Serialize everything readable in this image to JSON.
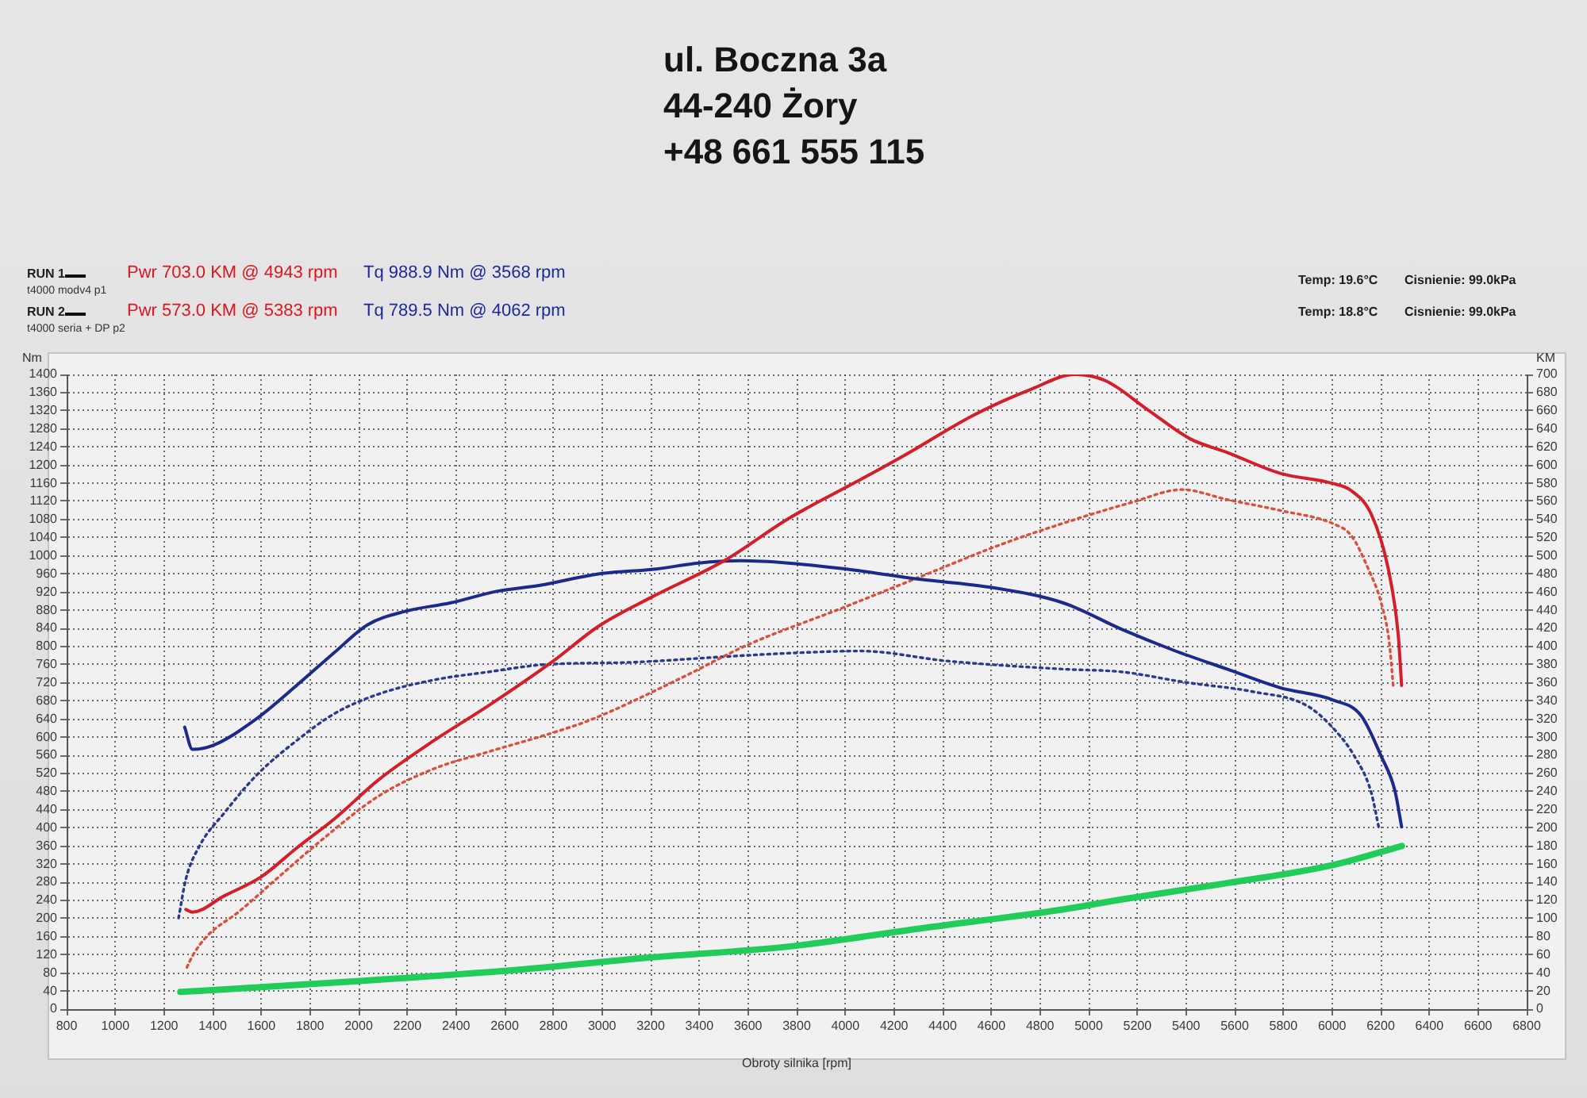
{
  "chart_data": {
    "type": "line",
    "annotations": [
      "ul. Boczna 3a",
      "44-240 Żory",
      "+48 661 555 115",
      "RUN 1",
      "Pwr 703.0 KM @ 4943 rpm",
      "Tq 988.9 Nm @ 3568 rpm",
      "t4000 modv4 p1",
      "RUN 2",
      "Pwr 573.0 KM @ 5383 rpm",
      "Tq 789.5 Nm @ 4062 rpm",
      "t4000 seria + DP p2",
      "Temp: 19.6°C",
      "Cisnienie: 99.0kPa",
      "Temp: 18.8°C",
      "Cisnienie: 99.0kPa"
    ],
    "xlabel": "Obroty silnika [rpm]",
    "ylabel": "Nm",
    "y2label": "KM",
    "xlim": [
      800,
      6800
    ],
    "xticks": [
      800,
      1000,
      1200,
      1400,
      1600,
      1800,
      2000,
      2200,
      2400,
      2600,
      2800,
      3000,
      3200,
      3400,
      3600,
      3800,
      4000,
      4200,
      4400,
      4600,
      4800,
      5000,
      5200,
      5400,
      5600,
      5800,
      6000,
      6200,
      6400,
      6600,
      6800
    ],
    "ylim": [
      0,
      1400
    ],
    "yticks": [
      0,
      40,
      80,
      120,
      160,
      200,
      240,
      280,
      320,
      360,
      400,
      440,
      480,
      520,
      560,
      600,
      640,
      680,
      720,
      760,
      800,
      840,
      880,
      920,
      960,
      1000,
      1040,
      1080,
      1120,
      1160,
      1200,
      1240,
      1280,
      1320,
      1360,
      1400
    ],
    "y2lim": [
      0,
      700
    ],
    "y2ticks": [
      0,
      20,
      40,
      60,
      80,
      100,
      120,
      140,
      160,
      180,
      200,
      220,
      240,
      260,
      280,
      300,
      320,
      340,
      360,
      380,
      400,
      420,
      440,
      460,
      480,
      500,
      520,
      540,
      560,
      580,
      600,
      620,
      640,
      660,
      680,
      700
    ],
    "grid": true,
    "series": [
      {
        "color": "#d41e2a",
        "axis": "y2",
        "line_style": "solid",
        "x": [
          1290,
          1317,
          1448,
          1600,
          1742,
          1901,
          2082,
          2308,
          2535,
          2800,
          2984,
          3201,
          3505,
          3766,
          4048,
          4244,
          4526,
          4766,
          4943,
          5070,
          5243,
          5417,
          5569,
          5787,
          6000,
          6078,
          6161,
          6230,
          6272,
          6286
        ],
        "values": [
          110,
          107,
          125,
          146,
          177,
          210,
          253,
          296,
          335,
          384,
          422,
          454,
          495,
          541,
          582,
          611,
          655,
          684,
          700,
          693,
          661,
          629,
          614,
          591,
          580,
          572,
          546,
          487,
          413,
          357
        ]
      },
      {
        "color": "#1c2a8a",
        "axis": "y",
        "line_style": "solid",
        "x": [
          1285,
          1317,
          1403,
          1584,
          1743,
          1901,
          2037,
          2195,
          2376,
          2571,
          2745,
          2984,
          3223,
          3397,
          3568,
          3766,
          3983,
          4309,
          4591,
          4896,
          5135,
          5352,
          5569,
          5787,
          6004,
          6120,
          6202,
          6258,
          6286
        ],
        "values": [
          622,
          573,
          582,
          642,
          713,
          787,
          848,
          878,
          896,
          922,
          935,
          960,
          971,
          984,
          989,
          984,
          972,
          948,
          931,
          896,
          838,
          791,
          750,
          709,
          682,
          647,
          558,
          483,
          402
        ]
      },
      {
        "color": "#d9503c",
        "axis": "y2",
        "line_style": "dotted",
        "x": [
          1294,
          1320,
          1375,
          1510,
          1668,
          1850,
          2082,
          2308,
          2535,
          2800,
          2962,
          3331,
          3592,
          3983,
          4309,
          4635,
          4896,
          5178,
          5383,
          5569,
          5787,
          6008,
          6080,
          6150,
          6200,
          6235,
          6252
        ],
        "values": [
          46,
          60,
          80,
          108,
          145,
          187,
          235,
          265,
          284,
          305,
          320,
          366,
          401,
          442,
          477,
          512,
          536,
          559,
          573,
          562,
          550,
          535,
          522,
          485,
          450,
          405,
          355
        ]
      },
      {
        "color": "#2b3a8c",
        "axis": "y",
        "line_style": "dotted",
        "x": [
          1260,
          1290,
          1346,
          1448,
          1584,
          1742,
          1901,
          2082,
          2308,
          2535,
          2761,
          3114,
          3549,
          3800,
          4062,
          4418,
          4896,
          5135,
          5396,
          5678,
          5895,
          6008,
          6092,
          6160,
          6194
        ],
        "values": [
          201,
          287,
          360,
          433,
          518,
          591,
          652,
          695,
          726,
          744,
          760,
          765,
          779,
          786,
          790,
          768,
          750,
          744,
          721,
          700,
          670,
          618,
          558,
          480,
          396
        ]
      },
      {
        "color": "#22cc5a",
        "axis": "y2",
        "line_style": "solid",
        "x": [
          1267,
          1400,
          2006,
          2679,
          3201,
          3766,
          4309,
          4896,
          5135,
          5569,
          6004,
          6287
        ],
        "values": [
          19,
          21,
          31,
          44,
          57,
          69,
          89,
          110,
          121,
          139,
          159,
          180
        ]
      }
    ]
  }
}
